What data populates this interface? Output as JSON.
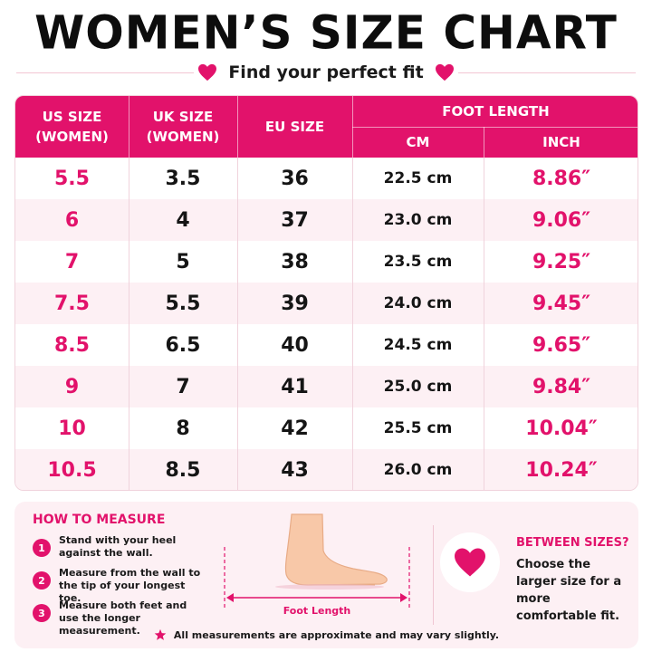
{
  "title": "WOMEN’S SIZE CHART",
  "subtitle": "Find your perfect fit",
  "colors": {
    "accent": "#e2126b",
    "row_alt": "#fdf0f4",
    "text": "#151515"
  },
  "table": {
    "headers": {
      "us": "US SIZE\n(WOMEN)",
      "uk": "UK SIZE\n(WOMEN)",
      "eu": "EU SIZE",
      "foot_length": "FOOT LENGTH",
      "cm": "CM",
      "inch": "INCH"
    },
    "rows": [
      {
        "us": "5.5",
        "uk": "3.5",
        "eu": "36",
        "cm": "22.5 cm",
        "inch": "8.86″"
      },
      {
        "us": "6",
        "uk": "4",
        "eu": "37",
        "cm": "23.0 cm",
        "inch": "9.06″"
      },
      {
        "us": "7",
        "uk": "5",
        "eu": "38",
        "cm": "23.5 cm",
        "inch": "9.25″"
      },
      {
        "us": "7.5",
        "uk": "5.5",
        "eu": "39",
        "cm": "24.0 cm",
        "inch": "9.45″"
      },
      {
        "us": "8.5",
        "uk": "6.5",
        "eu": "40",
        "cm": "24.5 cm",
        "inch": "9.65″"
      },
      {
        "us": "9",
        "uk": "7",
        "eu": "41",
        "cm": "25.0 cm",
        "inch": "9.84″"
      },
      {
        "us": "10",
        "uk": "8",
        "eu": "42",
        "cm": "25.5 cm",
        "inch": "10.04″"
      },
      {
        "us": "10.5",
        "uk": "8.5",
        "eu": "43",
        "cm": "26.0 cm",
        "inch": "10.24″"
      }
    ]
  },
  "how_to_measure": {
    "title": "HOW TO MEASURE",
    "steps": [
      {
        "num": "1",
        "text": "Stand with your heel against the wall."
      },
      {
        "num": "2",
        "text": "Measure from the wall to the tip of your longest toe."
      },
      {
        "num": "3",
        "text": "Measure both feet and use the longer measurement."
      }
    ],
    "foot_label": "Foot Length"
  },
  "between_sizes": {
    "title": "BETWEEN SIZES?",
    "text": "Choose the larger size for a more comfortable fit."
  },
  "note": "All measurements are approximate and may vary slightly.",
  "icons": [
    "heart-icon",
    "foot-illustration",
    "star-icon"
  ]
}
